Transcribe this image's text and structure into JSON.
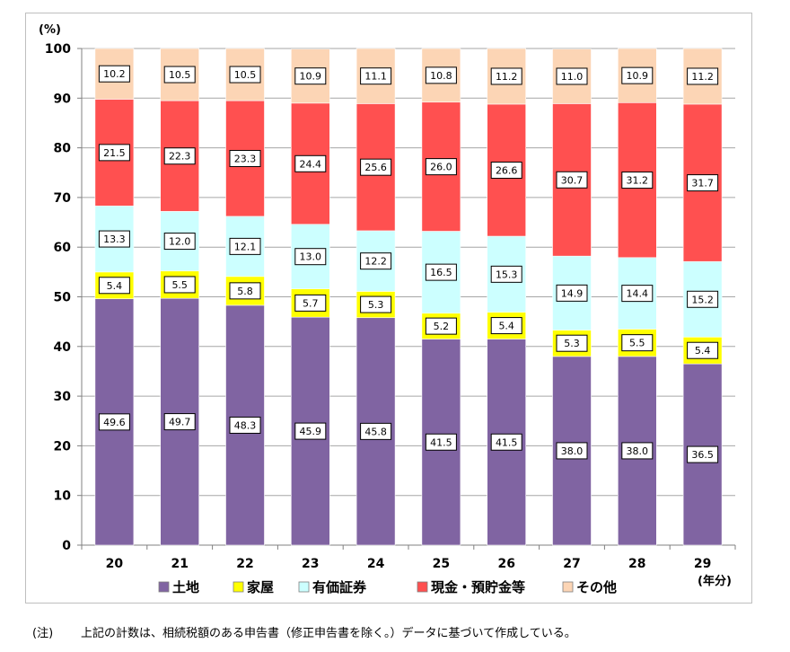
{
  "chart_data": {
    "type": "stacked-bar",
    "title": "",
    "ylabel": "(%)",
    "xlabel": "(年分)",
    "ylim": [
      0,
      100
    ],
    "yticks": [
      0,
      10,
      20,
      30,
      40,
      50,
      60,
      70,
      80,
      90,
      100
    ],
    "categories": [
      "20",
      "21",
      "22",
      "23",
      "24",
      "25",
      "26",
      "27",
      "28",
      "29"
    ],
    "series": [
      {
        "name": "土地",
        "color": "#8064a2",
        "values": [
          49.6,
          49.7,
          48.3,
          45.9,
          45.8,
          41.5,
          41.5,
          38.0,
          38.0,
          36.5
        ]
      },
      {
        "name": "家屋",
        "color": "#ffff00",
        "values": [
          5.4,
          5.5,
          5.8,
          5.7,
          5.3,
          5.2,
          5.4,
          5.3,
          5.5,
          5.4
        ]
      },
      {
        "name": "有価証券",
        "color": "#ccffff",
        "values": [
          13.3,
          12.0,
          12.1,
          13.0,
          12.2,
          16.5,
          15.3,
          14.9,
          14.4,
          15.2
        ]
      },
      {
        "name": "現金・預貯金等",
        "color": "#ff5050",
        "values": [
          21.5,
          22.3,
          23.3,
          24.4,
          25.6,
          26.0,
          26.6,
          30.7,
          31.2,
          31.7
        ]
      },
      {
        "name": "その他",
        "color": "#fcd5b5",
        "values": [
          10.2,
          10.5,
          10.5,
          10.9,
          11.1,
          10.8,
          11.2,
          11.0,
          10.9,
          11.2
        ]
      }
    ],
    "legend_position": "bottom"
  },
  "footnote": {
    "mark": "(注)",
    "text": "上記の計数は、相続税額のある申告書（修正申告書を除く。）データに基づいて作成している。"
  }
}
